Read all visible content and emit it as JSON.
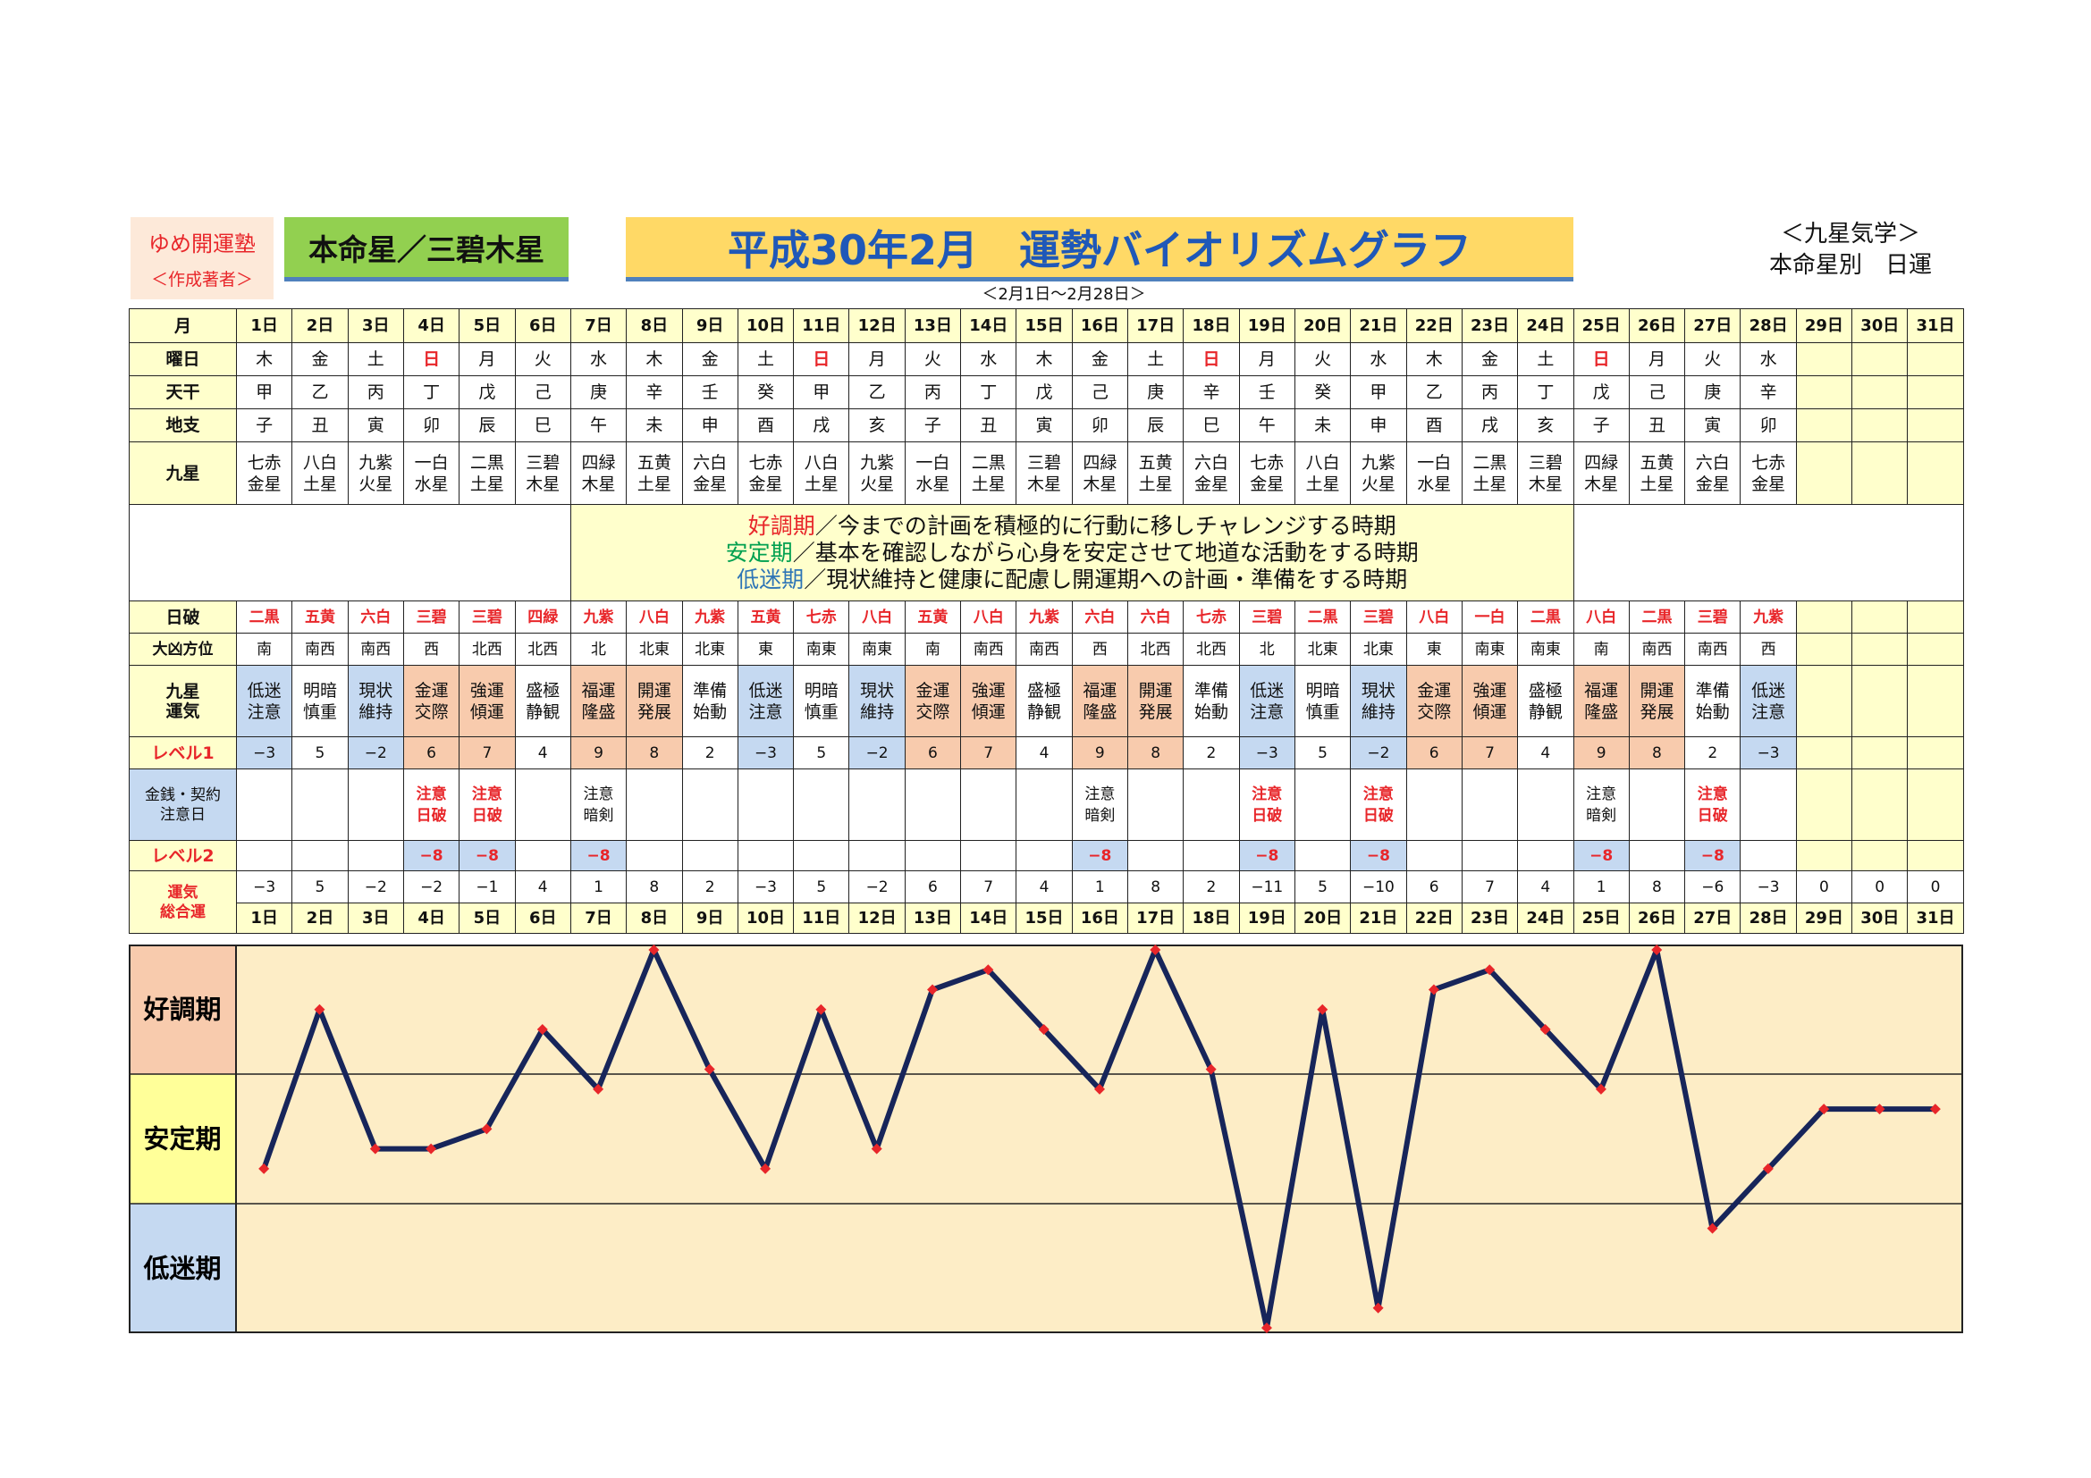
{
  "header": {
    "brand": "ゆめ開運塾",
    "author": "＜作成著者＞",
    "honmei": "本命星／三碧木星",
    "title": "平成30年2月　運勢バイオリズムグラフ",
    "range": "＜2月1日～2月28日＞",
    "category": "＜九星気学＞",
    "category_sub": "本命星別　日運"
  },
  "labels": {
    "month": "月",
    "weekday": "曜日",
    "tenkan": "天干",
    "chishi": "地支",
    "kusei": "九星",
    "nippa": "日破",
    "daikyo": "大凶方位",
    "kusei_unki": [
      "九星",
      "運気"
    ],
    "level1": "レベル1",
    "money": [
      "金銭・契約",
      "注意日"
    ],
    "level2": "レベル2",
    "sogo": [
      "運気",
      "総合運"
    ]
  },
  "legend": [
    {
      "term": "好調期",
      "text": "／今までの計画を積極的に行動に移しチャレンジする時期",
      "color": "#e8262a"
    },
    {
      "term": "安定期",
      "text": "／基本を確認しながら心身を安定させて地道な活動をする時期",
      "color": "#00a050"
    },
    {
      "term": "低迷期",
      "text": "／現状維持と健康に配慮し開運期への計画・準備をする時期",
      "color": "#2e75b6"
    }
  ],
  "days": [
    "1日",
    "2日",
    "3日",
    "4日",
    "5日",
    "6日",
    "7日",
    "8日",
    "9日",
    "10日",
    "11日",
    "12日",
    "13日",
    "14日",
    "15日",
    "16日",
    "17日",
    "18日",
    "19日",
    "20日",
    "21日",
    "22日",
    "23日",
    "24日",
    "25日",
    "26日",
    "27日",
    "28日",
    "29日",
    "30日",
    "31日"
  ],
  "weekday": [
    "木",
    "金",
    "土",
    "日",
    "月",
    "火",
    "水",
    "木",
    "金",
    "土",
    "日",
    "月",
    "火",
    "水",
    "木",
    "金",
    "土",
    "日",
    "月",
    "火",
    "水",
    "木",
    "金",
    "土",
    "日",
    "月",
    "火",
    "水",
    "",
    "",
    ""
  ],
  "tenkan": [
    "甲",
    "乙",
    "丙",
    "丁",
    "戊",
    "己",
    "庚",
    "辛",
    "壬",
    "癸",
    "甲",
    "乙",
    "丙",
    "丁",
    "戊",
    "己",
    "庚",
    "辛",
    "壬",
    "癸",
    "甲",
    "乙",
    "丙",
    "丁",
    "戊",
    "己",
    "庚",
    "辛",
    "",
    "",
    ""
  ],
  "chishi": [
    "子",
    "丑",
    "寅",
    "卯",
    "辰",
    "巳",
    "午",
    "未",
    "申",
    "酉",
    "戌",
    "亥",
    "子",
    "丑",
    "寅",
    "卯",
    "辰",
    "巳",
    "午",
    "未",
    "申",
    "酉",
    "戌",
    "亥",
    "子",
    "丑",
    "寅",
    "卯",
    "",
    "",
    ""
  ],
  "kusei": [
    [
      "七赤",
      "金星"
    ],
    [
      "八白",
      "土星"
    ],
    [
      "九紫",
      "火星"
    ],
    [
      "一白",
      "水星"
    ],
    [
      "二黒",
      "土星"
    ],
    [
      "三碧",
      "木星"
    ],
    [
      "四緑",
      "木星"
    ],
    [
      "五黄",
      "土星"
    ],
    [
      "六白",
      "金星"
    ],
    [
      "七赤",
      "金星"
    ],
    [
      "八白",
      "土星"
    ],
    [
      "九紫",
      "火星"
    ],
    [
      "一白",
      "水星"
    ],
    [
      "二黒",
      "土星"
    ],
    [
      "三碧",
      "木星"
    ],
    [
      "四緑",
      "木星"
    ],
    [
      "五黄",
      "土星"
    ],
    [
      "六白",
      "金星"
    ],
    [
      "七赤",
      "金星"
    ],
    [
      "八白",
      "土星"
    ],
    [
      "九紫",
      "火星"
    ],
    [
      "一白",
      "水星"
    ],
    [
      "二黒",
      "土星"
    ],
    [
      "三碧",
      "木星"
    ],
    [
      "四緑",
      "木星"
    ],
    [
      "五黄",
      "土星"
    ],
    [
      "六白",
      "金星"
    ],
    [
      "七赤",
      "金星"
    ],
    [
      "",
      ""
    ],
    [
      "",
      ""
    ],
    [
      "",
      ""
    ]
  ],
  "nippa": [
    "二黒",
    "五黄",
    "六白",
    "三碧",
    "三碧",
    "四緑",
    "九紫",
    "八白",
    "九紫",
    "五黄",
    "七赤",
    "八白",
    "五黄",
    "八白",
    "九紫",
    "六白",
    "六白",
    "七赤",
    "三碧",
    "二黒",
    "三碧",
    "八白",
    "一白",
    "二黒",
    "八白",
    "二黒",
    "三碧",
    "九紫",
    "",
    "",
    ""
  ],
  "daikyo": [
    "南",
    "南西",
    "南西",
    "西",
    "北西",
    "北西",
    "北",
    "北東",
    "北東",
    "東",
    "南東",
    "南東",
    "南",
    "南西",
    "南西",
    "西",
    "北西",
    "北西",
    "北",
    "北東",
    "北東",
    "東",
    "南東",
    "南東",
    "南",
    "南西",
    "南西",
    "西",
    "",
    "",
    ""
  ],
  "unki": [
    [
      "低迷",
      "注意"
    ],
    [
      "明暗",
      "慎重"
    ],
    [
      "現状",
      "維持"
    ],
    [
      "金運",
      "交際"
    ],
    [
      "強運",
      "傾運"
    ],
    [
      "盛極",
      "静観"
    ],
    [
      "福運",
      "隆盛"
    ],
    [
      "開運",
      "発展"
    ],
    [
      "準備",
      "始動"
    ],
    [
      "低迷",
      "注意"
    ],
    [
      "明暗",
      "慎重"
    ],
    [
      "現状",
      "維持"
    ],
    [
      "金運",
      "交際"
    ],
    [
      "強運",
      "傾運"
    ],
    [
      "盛極",
      "静観"
    ],
    [
      "福運",
      "隆盛"
    ],
    [
      "開運",
      "発展"
    ],
    [
      "準備",
      "始動"
    ],
    [
      "低迷",
      "注意"
    ],
    [
      "明暗",
      "慎重"
    ],
    [
      "現状",
      "維持"
    ],
    [
      "金運",
      "交際"
    ],
    [
      "強運",
      "傾運"
    ],
    [
      "盛極",
      "静観"
    ],
    [
      "福運",
      "隆盛"
    ],
    [
      "開運",
      "発展"
    ],
    [
      "準備",
      "始動"
    ],
    [
      "低迷",
      "注意"
    ],
    [
      "",
      ""
    ],
    [
      "",
      ""
    ],
    [
      "",
      ""
    ]
  ],
  "unki_type": [
    "blue",
    "plain",
    "blue",
    "pink",
    "pink",
    "plain",
    "pink",
    "pink",
    "plain",
    "blue",
    "plain",
    "blue",
    "pink",
    "pink",
    "plain",
    "pink",
    "pink",
    "plain",
    "blue",
    "plain",
    "blue",
    "pink",
    "pink",
    "plain",
    "pink",
    "pink",
    "plain",
    "blue",
    "plain",
    "plain",
    "plain"
  ],
  "level1": [
    "−3",
    "5",
    "−2",
    "6",
    "7",
    "4",
    "9",
    "8",
    "2",
    "−3",
    "5",
    "−2",
    "6",
    "7",
    "4",
    "9",
    "8",
    "2",
    "−3",
    "5",
    "−2",
    "6",
    "7",
    "4",
    "9",
    "8",
    "2",
    "−3",
    "",
    "",
    ""
  ],
  "money": [
    [
      "",
      ""
    ],
    [
      "",
      ""
    ],
    [
      "",
      ""
    ],
    [
      "注意",
      "日破"
    ],
    [
      "注意",
      "日破"
    ],
    [
      "",
      ""
    ],
    [
      "注意",
      "暗剣"
    ],
    [
      "",
      ""
    ],
    [
      "",
      ""
    ],
    [
      "",
      ""
    ],
    [
      "",
      ""
    ],
    [
      "",
      ""
    ],
    [
      "",
      ""
    ],
    [
      "",
      ""
    ],
    [
      "",
      ""
    ],
    [
      "注意",
      "暗剣"
    ],
    [
      "",
      ""
    ],
    [
      "",
      ""
    ],
    [
      "注意",
      "日破"
    ],
    [
      "",
      ""
    ],
    [
      "注意",
      "日破"
    ],
    [
      "",
      ""
    ],
    [
      "",
      ""
    ],
    [
      "",
      ""
    ],
    [
      "注意",
      "暗剣"
    ],
    [
      "",
      ""
    ],
    [
      "注意",
      "日破"
    ],
    [
      "",
      ""
    ],
    [
      "",
      ""
    ],
    [
      "",
      ""
    ],
    [
      "",
      ""
    ]
  ],
  "level2": [
    "",
    "",
    "",
    "−8",
    "−8",
    "",
    "−8",
    "",
    "",
    "",
    "",
    "",
    "",
    "",
    "",
    "−8",
    "",
    "",
    "−8",
    "",
    "−8",
    "",
    "",
    "",
    "−8",
    "",
    "−8",
    "",
    "",
    "",
    ""
  ],
  "total": [
    "−3",
    "5",
    "−2",
    "−2",
    "−1",
    "4",
    "1",
    "8",
    "2",
    "−3",
    "5",
    "−2",
    "6",
    "7",
    "4",
    "1",
    "8",
    "2",
    "−11",
    "5",
    "−10",
    "6",
    "7",
    "4",
    "1",
    "8",
    "−6",
    "−3",
    "0",
    "0",
    "0"
  ],
  "chart_data": {
    "type": "line",
    "x": [
      "1日",
      "2日",
      "3日",
      "4日",
      "5日",
      "6日",
      "7日",
      "8日",
      "9日",
      "10日",
      "11日",
      "12日",
      "13日",
      "14日",
      "15日",
      "16日",
      "17日",
      "18日",
      "19日",
      "20日",
      "21日",
      "22日",
      "23日",
      "24日",
      "25日",
      "26日",
      "27日",
      "28日",
      "29日",
      "30日",
      "31日"
    ],
    "values": [
      -3,
      5,
      -2,
      -2,
      -1,
      4,
      1,
      8,
      2,
      -3,
      5,
      -2,
      6,
      7,
      4,
      1,
      8,
      2,
      -11,
      5,
      -10,
      6,
      7,
      4,
      1,
      8,
      -6,
      -3,
      0,
      0,
      0
    ],
    "bands": [
      {
        "name": "好調期",
        "color": "#f8cbad"
      },
      {
        "name": "安定期",
        "color": "#ffff99"
      },
      {
        "name": "低迷期",
        "color": "#c5d9f1"
      }
    ],
    "ylim": [
      -11,
      8
    ],
    "line_color": "#17255a",
    "marker_color": "#e8262a"
  }
}
